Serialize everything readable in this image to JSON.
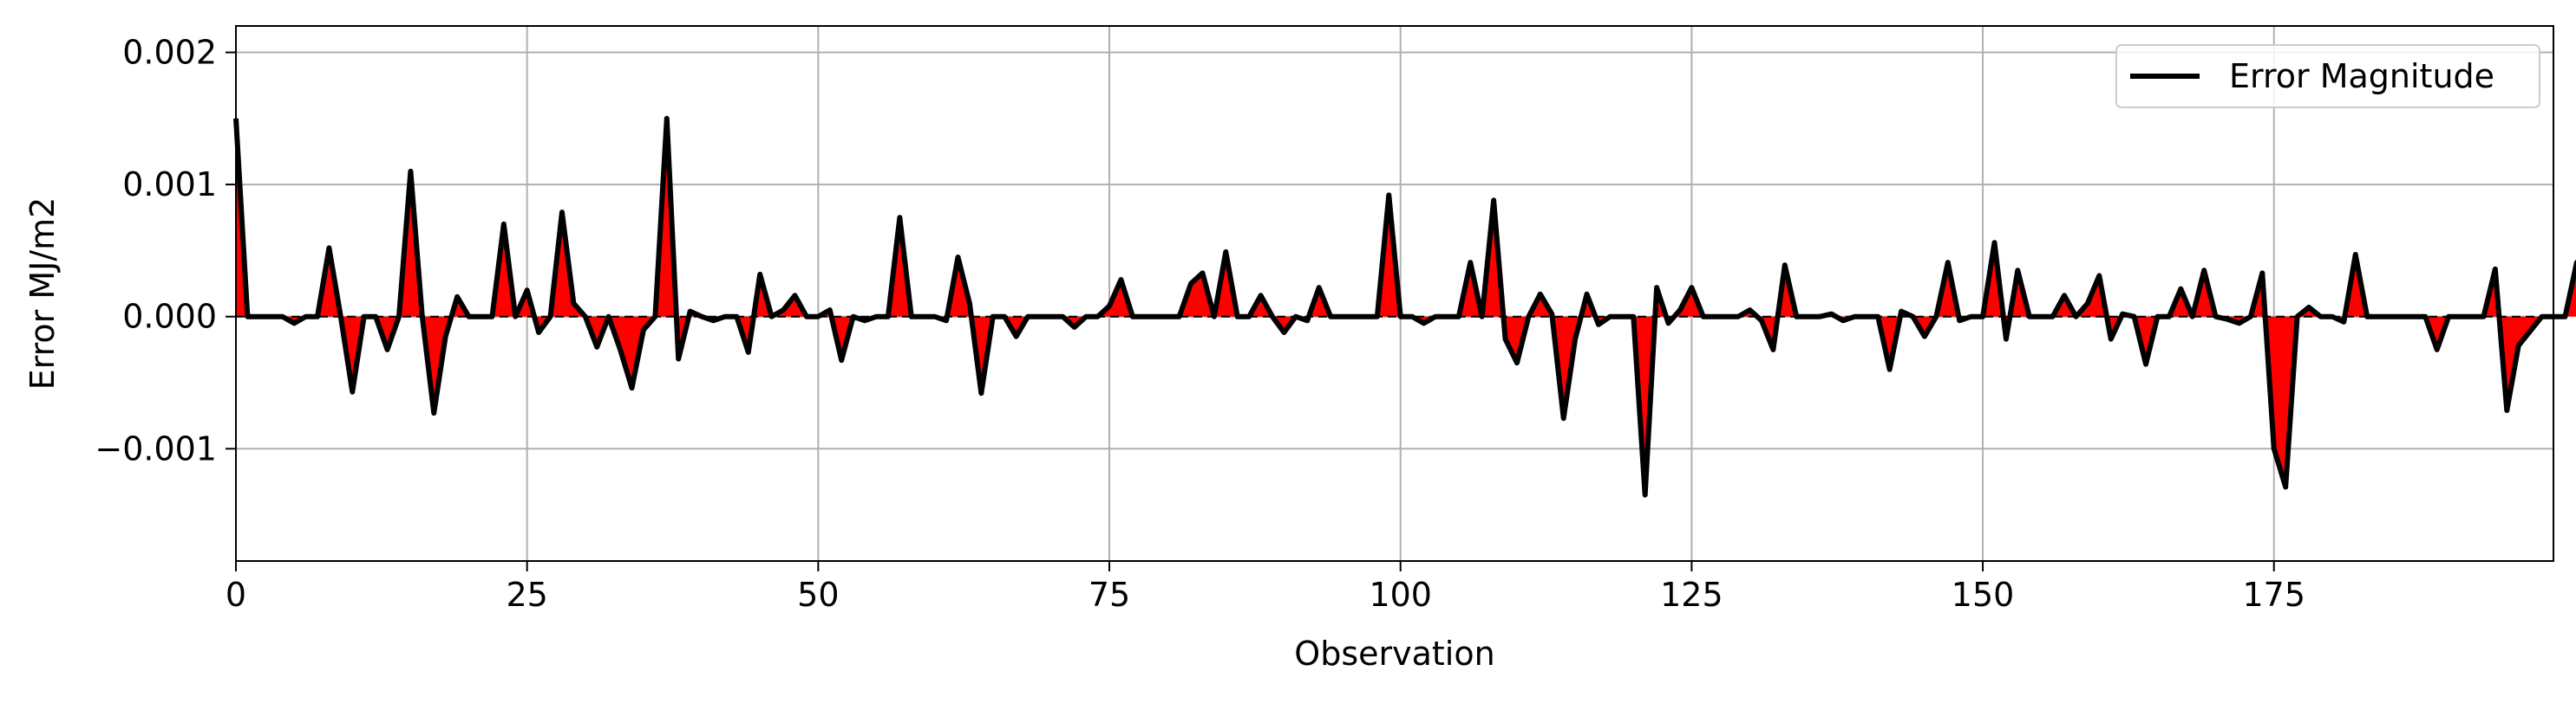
{
  "chart_data": {
    "type": "area",
    "title": "",
    "xlabel": "Observation",
    "ylabel": "Error MJ/m2",
    "xlim": [
      0,
      199
    ],
    "ylim": [
      -0.00185,
      0.0022
    ],
    "x_ticks": [
      0,
      25,
      50,
      75,
      100,
      125,
      150,
      175
    ],
    "x_tick_labels": [
      "0",
      "25",
      "50",
      "75",
      "100",
      "125",
      "150",
      "175"
    ],
    "y_ticks": [
      0.002,
      0.001,
      0.0,
      -0.001
    ],
    "y_tick_labels": [
      "0.002",
      "0.001",
      "0.000",
      "−0.001"
    ],
    "grid": true,
    "legend": {
      "position": "top-right",
      "entries": [
        "Error Magnitude"
      ]
    },
    "series": [
      {
        "name": "Error Magnitude",
        "line_color": "#000000",
        "fill_color": "#ff0000",
        "x_start": 0,
        "x_step": 1,
        "values": [
          0.0015,
          0.0,
          0.0,
          0.0,
          0.0,
          -5e-05,
          0.0,
          0.0,
          0.00052,
          0.0,
          -0.00057,
          0.0,
          0.0,
          -0.00025,
          0.0,
          0.0011,
          0.0,
          -0.00073,
          -0.00015,
          0.00015,
          0.0,
          0.0,
          0.0,
          0.0007,
          0.0,
          0.0002,
          -0.00012,
          0.0,
          0.00079,
          0.0001,
          0.0,
          -0.00023,
          0.0,
          -0.00025,
          -0.00054,
          -0.0001,
          0.0,
          0.0015,
          -0.00032,
          4e-05,
          0.0,
          -3e-05,
          0.0,
          0.0,
          -0.00027,
          0.00032,
          0.0,
          5e-05,
          0.00016,
          0.0,
          0.0,
          5e-05,
          -0.00033,
          0.0,
          -3e-05,
          0.0,
          0.0,
          0.00075,
          0.0,
          0.0,
          0.0,
          -3e-05,
          0.00045,
          0.0001,
          -0.00058,
          0.0,
          0.0,
          -0.00015,
          0.0,
          0.0,
          0.0,
          0.0,
          -8e-05,
          0.0,
          0.0,
          8e-05,
          0.00028,
          0.0,
          0.0,
          0.0,
          0.0,
          0.0,
          0.00025,
          0.00033,
          0.0,
          0.00049,
          0.0,
          0.0,
          0.00016,
          0.0,
          -0.00012,
          0.0,
          -3e-05,
          0.00022,
          0.0,
          0.0,
          0.0,
          0.0,
          0.0,
          0.00092,
          0.0,
          0.0,
          -5e-05,
          0.0,
          0.0,
          0.0,
          0.00041,
          0.0,
          0.00088,
          -0.00017,
          -0.00035,
          0.0,
          0.00017,
          2e-05,
          -0.00077,
          -0.00017,
          0.00017,
          -6e-05,
          0.0,
          0.0,
          0.0,
          -0.00135,
          0.00022,
          -5e-05,
          5e-05,
          0.00022,
          0.0,
          0.0,
          0.0,
          0.0,
          5e-05,
          -3e-05,
          -0.00025,
          0.00039,
          0.0,
          0.0,
          0.0,
          2e-05,
          -3e-05,
          0.0,
          0.0,
          0.0,
          -0.0004,
          4e-05,
          0.0,
          -0.00015,
          0.0,
          0.00041,
          -3e-05,
          0.0,
          0.0,
          0.00056,
          -0.00017,
          0.00035,
          0.0,
          0.0,
          0.0,
          0.00016,
          0.0,
          0.0001,
          0.00031,
          -0.00017,
          2e-05,
          0.0,
          -0.00036,
          0.0,
          0.0,
          0.00021,
          0.0,
          0.00035,
          0.0,
          -2e-05,
          -5e-05,
          0.0,
          0.00033,
          -0.001,
          -0.00129,
          0.0,
          7e-05,
          0.0,
          0.0,
          -4e-05,
          0.00047,
          0.0,
          0.0,
          0.0,
          0.0,
          0.0,
          0.0,
          -0.00025,
          0.0,
          0.0,
          0.0,
          0.0,
          0.00036,
          -0.00071,
          -0.00022,
          -0.00011,
          0.0,
          0.0,
          0.0,
          0.00041,
          0.00039
        ]
      }
    ]
  }
}
